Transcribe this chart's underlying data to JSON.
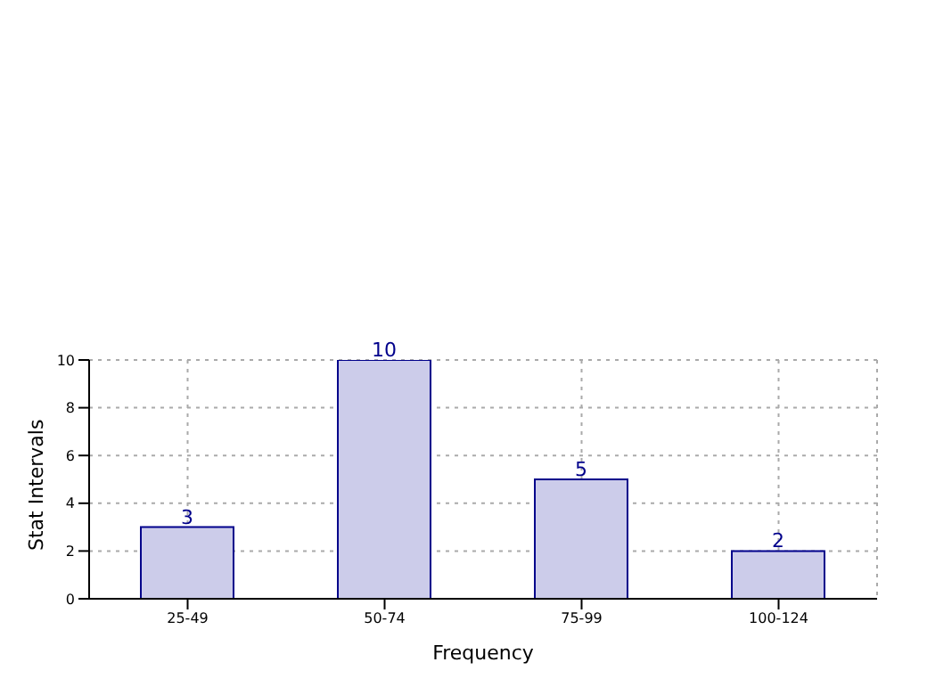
{
  "chart_data": {
    "type": "bar",
    "xlabel": "Frequency",
    "ylabel": "Stat Intervals",
    "categories": [
      "25-49",
      "50-74",
      "75-99",
      "100-124"
    ],
    "values": [
      3,
      10,
      5,
      2
    ],
    "color": "#ccccea",
    "ylim": [
      0,
      10
    ],
    "yticks": [
      0,
      2,
      4,
      6,
      8,
      10
    ],
    "grid": true,
    "data_labels": true
  }
}
